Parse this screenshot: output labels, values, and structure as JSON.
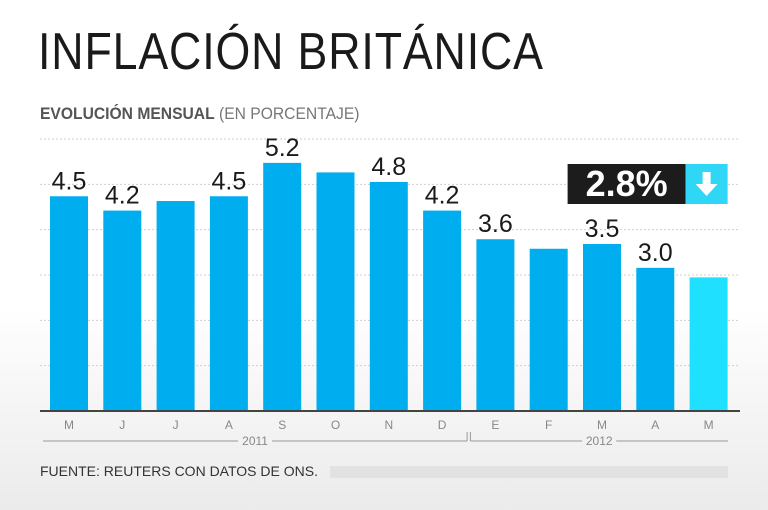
{
  "title": "INFLACIÓN BRITÁNICA",
  "subtitle": {
    "bold": "EVOLUCIÓN MENSUAL",
    "light": "(EN PORCENTAJE)"
  },
  "source": "FUENTE: REUTERS CON DATOS DE ONS.",
  "colors": {
    "bar": "#00aeef",
    "bar_highlight": "#1fe0ff",
    "callout_bg": "#1c1c1c",
    "callout_arrow_bg": "#2fd6f5",
    "gridline": "#cfcfcf",
    "axis": "#444444"
  },
  "chart_data": {
    "type": "bar",
    "categories": [
      "M",
      "J",
      "J",
      "A",
      "S",
      "O",
      "N",
      "D",
      "E",
      "F",
      "M",
      "A",
      "M"
    ],
    "values": [
      4.5,
      4.2,
      4.4,
      4.5,
      5.2,
      5.0,
      4.8,
      4.2,
      3.6,
      3.4,
      3.5,
      3.0,
      2.8
    ],
    "data_labels": [
      "4.5",
      "4.2",
      "",
      "4.5",
      "5.2",
      "",
      "4.8",
      "4.2",
      "3.6",
      "",
      "3.5",
      "3.0",
      ""
    ],
    "highlight_index": 12,
    "callout": {
      "text": "2.8%",
      "icon": "down-arrow-icon"
    },
    "year_groups": [
      {
        "label": "2011",
        "start": 0,
        "end": 7
      },
      {
        "label": "2012",
        "start": 8,
        "end": 12
      }
    ],
    "ylim": [
      0,
      5.7
    ],
    "grid": true,
    "xlabel": "",
    "ylabel": ""
  }
}
